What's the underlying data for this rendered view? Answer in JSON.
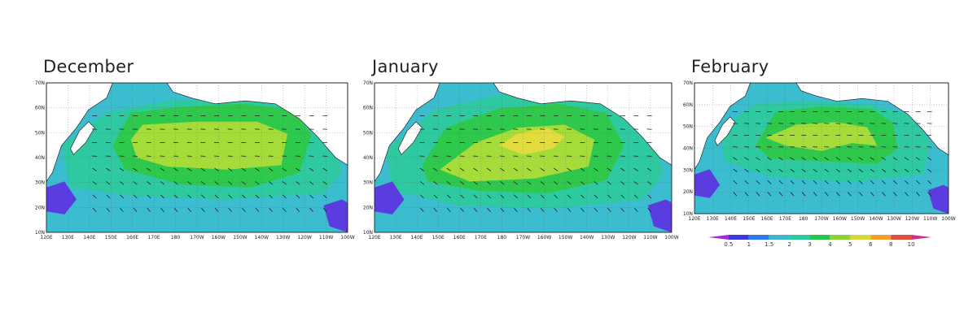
{
  "panels": [
    {
      "id": "dec",
      "title": "December",
      "x_ticks": [
        "120E",
        "130E",
        "140E",
        "150E",
        "160E",
        "170E",
        "180",
        "170W",
        "160W",
        "150W",
        "140W",
        "130W",
        "120W",
        "110W",
        "100W"
      ],
      "y_ticks": [
        "10N",
        "20N",
        "30N",
        "40N",
        "50N",
        "60N",
        "70N"
      ]
    },
    {
      "id": "jan",
      "title": "January",
      "x_ticks": [
        "120E",
        "130E",
        "140E",
        "150E",
        "160E",
        "170E",
        "180",
        "170W",
        "160W",
        "150W",
        "140W",
        "130W",
        "120W",
        "110W",
        "100W"
      ],
      "y_ticks": [
        "10N",
        "20N",
        "30N",
        "40N",
        "50N",
        "60N",
        "70N"
      ]
    },
    {
      "id": "feb",
      "title": "February",
      "x_ticks": [
        "120E",
        "130E",
        "140E",
        "150E",
        "160E",
        "170E",
        "180",
        "170W",
        "160W",
        "150W",
        "140W",
        "130W",
        "120W",
        "110W",
        "100W"
      ],
      "y_ticks": [
        "10N",
        "20N",
        "30N",
        "40N",
        "50N",
        "60N",
        "70N"
      ]
    }
  ],
  "colorbar": {
    "labels": [
      "0.5",
      "1",
      "1.5",
      "2",
      "3",
      "4",
      "5",
      "6",
      "8",
      "10"
    ],
    "colors": [
      "#9b2fd6",
      "#3a3ae0",
      "#2f7be8",
      "#3fb6cf",
      "#2ec9a0",
      "#2bc44a",
      "#8fd233",
      "#d8d838",
      "#f0a030",
      "#e0503c",
      "#d42a8a"
    ]
  },
  "palette": {
    "land": "#ffffff",
    "deep": "#5b3ce0",
    "cyan": "#3bbccf",
    "teal": "#2ec9a0",
    "green": "#2ec94c",
    "lime": "#a6dc3a",
    "yellow": "#e2dc3e"
  }
}
